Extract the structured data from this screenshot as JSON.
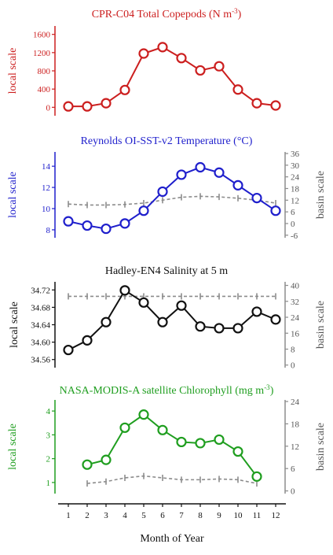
{
  "chart_data": [
    {
      "type": "line",
      "title": "CPR-C04 Total Copepods (N m",
      "title_sup": "-3",
      "title_suffix": ")",
      "ylabel": "local scale",
      "color": "#cc1f1f",
      "ylim": [
        -150,
        1750
      ],
      "yticks": [
        0,
        400,
        800,
        1200,
        1600
      ],
      "series": [
        {
          "x": [
            1,
            2,
            3,
            4,
            5,
            6,
            7,
            8,
            9,
            10,
            11,
            12
          ],
          "values": [
            20,
            20,
            90,
            380,
            1180,
            1320,
            1080,
            810,
            900,
            390,
            90,
            40
          ]
        }
      ]
    },
    {
      "type": "line",
      "title": "Reynolds OI-SST-v2 Temperature (°C)",
      "ylabel": "local scale",
      "ylabel_right": "basin scale",
      "color": "#1f1fcc",
      "ylim": [
        7.4,
        15.2
      ],
      "yticks": [
        8,
        10,
        12,
        14
      ],
      "ylim_right": [
        -6.5,
        36
      ],
      "yticks_right": [
        -6,
        0,
        6,
        12,
        18,
        24,
        30,
        36
      ],
      "series": [
        {
          "x": [
            1,
            2,
            3,
            4,
            5,
            6,
            7,
            8,
            9,
            10,
            11,
            12
          ],
          "values": [
            8.8,
            8.4,
            8.1,
            8.6,
            9.8,
            11.6,
            13.2,
            13.9,
            13.4,
            12.2,
            11.0,
            9.8
          ]
        }
      ],
      "basin_series": {
        "x": [
          1,
          2,
          3,
          4,
          5,
          6,
          7,
          8,
          9,
          10,
          11,
          12
        ],
        "values": [
          10.0,
          9.5,
          9.5,
          9.8,
          10.5,
          12.0,
          13.5,
          14.0,
          13.7,
          13.0,
          12.0,
          10.5
        ]
      }
    },
    {
      "type": "line",
      "title": "Hadley-EN4 Salinity at 5 m",
      "ylabel": "local scale",
      "ylabel_right": "basin scale",
      "color": "#111111",
      "ylim": [
        34.545,
        34.735
      ],
      "yticks": [
        34.56,
        34.6,
        34.64,
        34.68,
        34.72
      ],
      "ytick_labels": [
        "34.56",
        "34.60",
        "34.64",
        "34.68",
        "34.72"
      ],
      "ylim_right": [
        -0.5,
        41
      ],
      "yticks_right": [
        0,
        8,
        16,
        24,
        32,
        40
      ],
      "series": [
        {
          "x": [
            1,
            2,
            3,
            4,
            5,
            6,
            7,
            8,
            9,
            10,
            11,
            12
          ],
          "values": [
            34.582,
            34.604,
            34.646,
            34.719,
            34.691,
            34.646,
            34.684,
            34.636,
            34.632,
            34.632,
            34.67,
            34.652
          ]
        }
      ],
      "basin_series": {
        "x": [
          1,
          2,
          3,
          4,
          5,
          6,
          7,
          8,
          9,
          10,
          11,
          12
        ],
        "values": [
          34.5,
          34.5,
          34.5,
          34.5,
          34.5,
          34.5,
          34.5,
          34.5,
          34.5,
          34.5,
          34.5,
          34.5
        ]
      }
    },
    {
      "type": "line",
      "title": "NASA-MODIS-A satellite Chlorophyll (mg m",
      "title_sup": "-3",
      "title_suffix": ")",
      "ylabel": "local scale",
      "ylabel_right": "basin scale",
      "color": "#1f9e1f",
      "ylim": [
        0.6,
        4.4
      ],
      "yticks": [
        1,
        2,
        3,
        4
      ],
      "ylim_right": [
        -0.3,
        24
      ],
      "yticks_right": [
        0,
        6,
        12,
        18,
        24
      ],
      "series": [
        {
          "x": [
            2,
            3,
            4,
            5,
            6,
            7,
            8,
            9,
            10,
            11
          ],
          "values": [
            1.75,
            1.95,
            3.3,
            3.85,
            3.2,
            2.7,
            2.65,
            2.8,
            2.3,
            1.25
          ]
        }
      ],
      "basin_series": {
        "x": [
          2,
          3,
          4,
          5,
          6,
          7,
          8,
          9,
          10,
          11
        ],
        "values": [
          2.0,
          2.5,
          3.5,
          4.0,
          3.5,
          3.0,
          3.0,
          3.2,
          3.0,
          2.0
        ]
      }
    }
  ],
  "x_axis": {
    "label": "Month of Year",
    "ticks": [
      1,
      2,
      3,
      4,
      5,
      6,
      7,
      8,
      9,
      10,
      11,
      12
    ]
  },
  "basin_color": "#8c8c8c"
}
